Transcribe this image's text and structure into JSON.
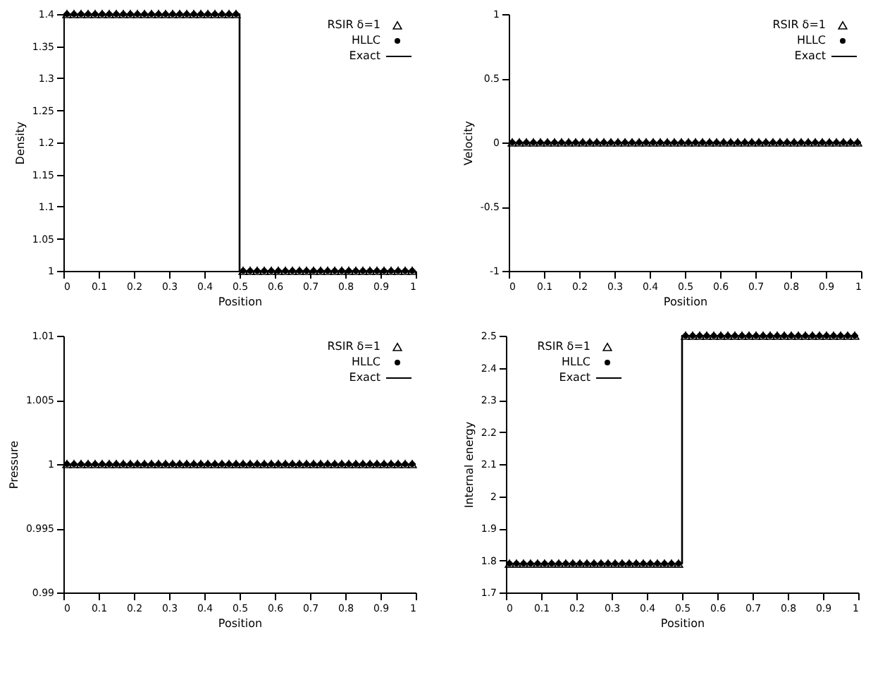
{
  "chart_data": [
    {
      "type": "scatter",
      "xlabel": "Position",
      "ylabel": "Density",
      "legend": "top right",
      "grid": false,
      "xlim": [
        0,
        1
      ],
      "xticks": [
        0,
        0.1,
        0.2,
        0.3,
        0.4,
        0.5,
        0.6,
        0.7,
        0.8,
        0.9,
        1
      ],
      "ylim": [
        1,
        1.4
      ],
      "yticks": [
        1,
        1.05,
        1.1,
        1.15,
        1.2,
        1.25,
        1.3,
        1.35,
        1.4
      ],
      "x": [
        0.01,
        0.03,
        0.05,
        0.07,
        0.09,
        0.11,
        0.13,
        0.15,
        0.17,
        0.19,
        0.21,
        0.23,
        0.25,
        0.27,
        0.29,
        0.31,
        0.33,
        0.35,
        0.37,
        0.39,
        0.41,
        0.43,
        0.45,
        0.47,
        0.49,
        0.51,
        0.53,
        0.55,
        0.57,
        0.59,
        0.61,
        0.63,
        0.65,
        0.67,
        0.69,
        0.71,
        0.73,
        0.75,
        0.77,
        0.79,
        0.81,
        0.83,
        0.85,
        0.87,
        0.89,
        0.91,
        0.93,
        0.95,
        0.97,
        0.99
      ],
      "series": [
        {
          "name": "RSIR δ=1",
          "color": "#000000",
          "marker": "triangle",
          "values": [
            1.4,
            1.4,
            1.4,
            1.4,
            1.4,
            1.4,
            1.4,
            1.4,
            1.4,
            1.4,
            1.4,
            1.4,
            1.4,
            1.4,
            1.4,
            1.4,
            1.4,
            1.4,
            1.4,
            1.4,
            1.4,
            1.4,
            1.4,
            1.4,
            1.4,
            1,
            1,
            1,
            1,
            1,
            1,
            1,
            1,
            1,
            1,
            1,
            1,
            1,
            1,
            1,
            1,
            1,
            1,
            1,
            1,
            1,
            1,
            1,
            1,
            1
          ]
        },
        {
          "name": "HLLC",
          "color": "#000000",
          "marker": "circle",
          "values": [
            1.4,
            1.4,
            1.4,
            1.4,
            1.4,
            1.4,
            1.4,
            1.4,
            1.4,
            1.4,
            1.4,
            1.4,
            1.4,
            1.4,
            1.4,
            1.4,
            1.4,
            1.4,
            1.4,
            1.4,
            1.4,
            1.4,
            1.4,
            1.4,
            1.4,
            1,
            1,
            1,
            1,
            1,
            1,
            1,
            1,
            1,
            1,
            1,
            1,
            1,
            1,
            1,
            1,
            1,
            1,
            1,
            1,
            1,
            1,
            1,
            1,
            1
          ]
        },
        {
          "name": "Exact",
          "color": "#000000",
          "type": "line",
          "line_style": "solid",
          "x": [
            0,
            0.5,
            0.5,
            1
          ],
          "values": [
            1.4,
            1.4,
            1,
            1
          ]
        }
      ]
    },
    {
      "type": "scatter",
      "xlabel": "Position",
      "ylabel": "Velocity",
      "legend": "top right",
      "grid": false,
      "xlim": [
        0,
        1
      ],
      "xticks": [
        0,
        0.1,
        0.2,
        0.3,
        0.4,
        0.5,
        0.6,
        0.7,
        0.8,
        0.9,
        1
      ],
      "ylim": [
        -1,
        1
      ],
      "yticks": [
        -1,
        -0.5,
        0,
        0.5,
        1
      ],
      "x": [
        0.01,
        0.03,
        0.05,
        0.07,
        0.09,
        0.11,
        0.13,
        0.15,
        0.17,
        0.19,
        0.21,
        0.23,
        0.25,
        0.27,
        0.29,
        0.31,
        0.33,
        0.35,
        0.37,
        0.39,
        0.41,
        0.43,
        0.45,
        0.47,
        0.49,
        0.51,
        0.53,
        0.55,
        0.57,
        0.59,
        0.61,
        0.63,
        0.65,
        0.67,
        0.69,
        0.71,
        0.73,
        0.75,
        0.77,
        0.79,
        0.81,
        0.83,
        0.85,
        0.87,
        0.89,
        0.91,
        0.93,
        0.95,
        0.97,
        0.99
      ],
      "series": [
        {
          "name": "RSIR δ=1",
          "color": "#000000",
          "marker": "triangle",
          "values": [
            0,
            0,
            0,
            0,
            0,
            0,
            0,
            0,
            0,
            0,
            0,
            0,
            0,
            0,
            0,
            0,
            0,
            0,
            0,
            0,
            0,
            0,
            0,
            0,
            0,
            0,
            0,
            0,
            0,
            0,
            0,
            0,
            0,
            0,
            0,
            0,
            0,
            0,
            0,
            0,
            0,
            0,
            0,
            0,
            0,
            0,
            0,
            0,
            0,
            0
          ]
        },
        {
          "name": "HLLC",
          "color": "#000000",
          "marker": "circle",
          "values": [
            0,
            0,
            0,
            0,
            0,
            0,
            0,
            0,
            0,
            0,
            0,
            0,
            0,
            0,
            0,
            0,
            0,
            0,
            0,
            0,
            0,
            0,
            0,
            0,
            0,
            0,
            0,
            0,
            0,
            0,
            0,
            0,
            0,
            0,
            0,
            0,
            0,
            0,
            0,
            0,
            0,
            0,
            0,
            0,
            0,
            0,
            0,
            0,
            0,
            0
          ]
        },
        {
          "name": "Exact",
          "color": "#000000",
          "type": "line",
          "line_style": "solid",
          "x": [
            0,
            1
          ],
          "values": [
            0,
            0
          ]
        }
      ]
    },
    {
      "type": "scatter",
      "xlabel": "Position",
      "ylabel": "Pressure",
      "legend": "top right",
      "grid": false,
      "xlim": [
        0,
        1
      ],
      "xticks": [
        0,
        0.1,
        0.2,
        0.3,
        0.4,
        0.5,
        0.6,
        0.7,
        0.8,
        0.9,
        1
      ],
      "ylim": [
        0.99,
        1.01
      ],
      "yticks": [
        0.99,
        0.995,
        1,
        1.005,
        1.01
      ],
      "x": [
        0.01,
        0.03,
        0.05,
        0.07,
        0.09,
        0.11,
        0.13,
        0.15,
        0.17,
        0.19,
        0.21,
        0.23,
        0.25,
        0.27,
        0.29,
        0.31,
        0.33,
        0.35,
        0.37,
        0.39,
        0.41,
        0.43,
        0.45,
        0.47,
        0.49,
        0.51,
        0.53,
        0.55,
        0.57,
        0.59,
        0.61,
        0.63,
        0.65,
        0.67,
        0.69,
        0.71,
        0.73,
        0.75,
        0.77,
        0.79,
        0.81,
        0.83,
        0.85,
        0.87,
        0.89,
        0.91,
        0.93,
        0.95,
        0.97,
        0.99
      ],
      "series": [
        {
          "name": "RSIR δ=1",
          "color": "#000000",
          "marker": "triangle",
          "values": [
            1,
            1,
            1,
            1,
            1,
            1,
            1,
            1,
            1,
            1,
            1,
            1,
            1,
            1,
            1,
            1,
            1,
            1,
            1,
            1,
            1,
            1,
            1,
            1,
            1,
            1,
            1,
            1,
            1,
            1,
            1,
            1,
            1,
            1,
            1,
            1,
            1,
            1,
            1,
            1,
            1,
            1,
            1,
            1,
            1,
            1,
            1,
            1,
            1,
            1
          ]
        },
        {
          "name": "HLLC",
          "color": "#000000",
          "marker": "circle",
          "values": [
            1,
            1,
            1,
            1,
            1,
            1,
            1,
            1,
            1,
            1,
            1,
            1,
            1,
            1,
            1,
            1,
            1,
            1,
            1,
            1,
            1,
            1,
            1,
            1,
            1,
            1,
            1,
            1,
            1,
            1,
            1,
            1,
            1,
            1,
            1,
            1,
            1,
            1,
            1,
            1,
            1,
            1,
            1,
            1,
            1,
            1,
            1,
            1,
            1,
            1
          ]
        },
        {
          "name": "Exact",
          "color": "#000000",
          "type": "line",
          "line_style": "solid",
          "x": [
            0,
            1
          ],
          "values": [
            1,
            1
          ]
        }
      ]
    },
    {
      "type": "scatter",
      "xlabel": "Position",
      "ylabel": "Internal energy",
      "legend": "top left",
      "grid": false,
      "xlim": [
        0,
        1
      ],
      "xticks": [
        0,
        0.1,
        0.2,
        0.3,
        0.4,
        0.5,
        0.6,
        0.7,
        0.8,
        0.9,
        1
      ],
      "ylim": [
        1.7,
        2.5
      ],
      "yticks": [
        1.7,
        1.8,
        1.9,
        2,
        2.1,
        2.2,
        2.3,
        2.4,
        2.5
      ],
      "x": [
        0.01,
        0.03,
        0.05,
        0.07,
        0.09,
        0.11,
        0.13,
        0.15,
        0.17,
        0.19,
        0.21,
        0.23,
        0.25,
        0.27,
        0.29,
        0.31,
        0.33,
        0.35,
        0.37,
        0.39,
        0.41,
        0.43,
        0.45,
        0.47,
        0.49,
        0.51,
        0.53,
        0.55,
        0.57,
        0.59,
        0.61,
        0.63,
        0.65,
        0.67,
        0.69,
        0.71,
        0.73,
        0.75,
        0.77,
        0.79,
        0.81,
        0.83,
        0.85,
        0.87,
        0.89,
        0.91,
        0.93,
        0.95,
        0.97,
        0.99
      ],
      "series": [
        {
          "name": "RSIR δ=1",
          "color": "#000000",
          "marker": "triangle",
          "values": [
            1.79,
            1.79,
            1.79,
            1.79,
            1.79,
            1.79,
            1.79,
            1.79,
            1.79,
            1.79,
            1.79,
            1.79,
            1.79,
            1.79,
            1.79,
            1.79,
            1.79,
            1.79,
            1.79,
            1.79,
            1.79,
            1.79,
            1.79,
            1.79,
            1.79,
            2.5,
            2.5,
            2.5,
            2.5,
            2.5,
            2.5,
            2.5,
            2.5,
            2.5,
            2.5,
            2.5,
            2.5,
            2.5,
            2.5,
            2.5,
            2.5,
            2.5,
            2.5,
            2.5,
            2.5,
            2.5,
            2.5,
            2.5,
            2.5,
            2.5
          ]
        },
        {
          "name": "HLLC",
          "color": "#000000",
          "marker": "circle",
          "values": [
            1.79,
            1.79,
            1.79,
            1.79,
            1.79,
            1.79,
            1.79,
            1.79,
            1.79,
            1.79,
            1.79,
            1.79,
            1.79,
            1.79,
            1.79,
            1.79,
            1.79,
            1.79,
            1.79,
            1.79,
            1.79,
            1.79,
            1.79,
            1.79,
            1.79,
            2.5,
            2.5,
            2.5,
            2.5,
            2.5,
            2.5,
            2.5,
            2.5,
            2.5,
            2.5,
            2.5,
            2.5,
            2.5,
            2.5,
            2.5,
            2.5,
            2.5,
            2.5,
            2.5,
            2.5,
            2.5,
            2.5,
            2.5,
            2.5,
            2.5
          ]
        },
        {
          "name": "Exact",
          "color": "#000000",
          "type": "line",
          "line_style": "solid",
          "x": [
            0,
            0.5,
            0.5,
            1
          ],
          "values": [
            1.79,
            1.79,
            2.5,
            2.5
          ]
        }
      ]
    }
  ]
}
